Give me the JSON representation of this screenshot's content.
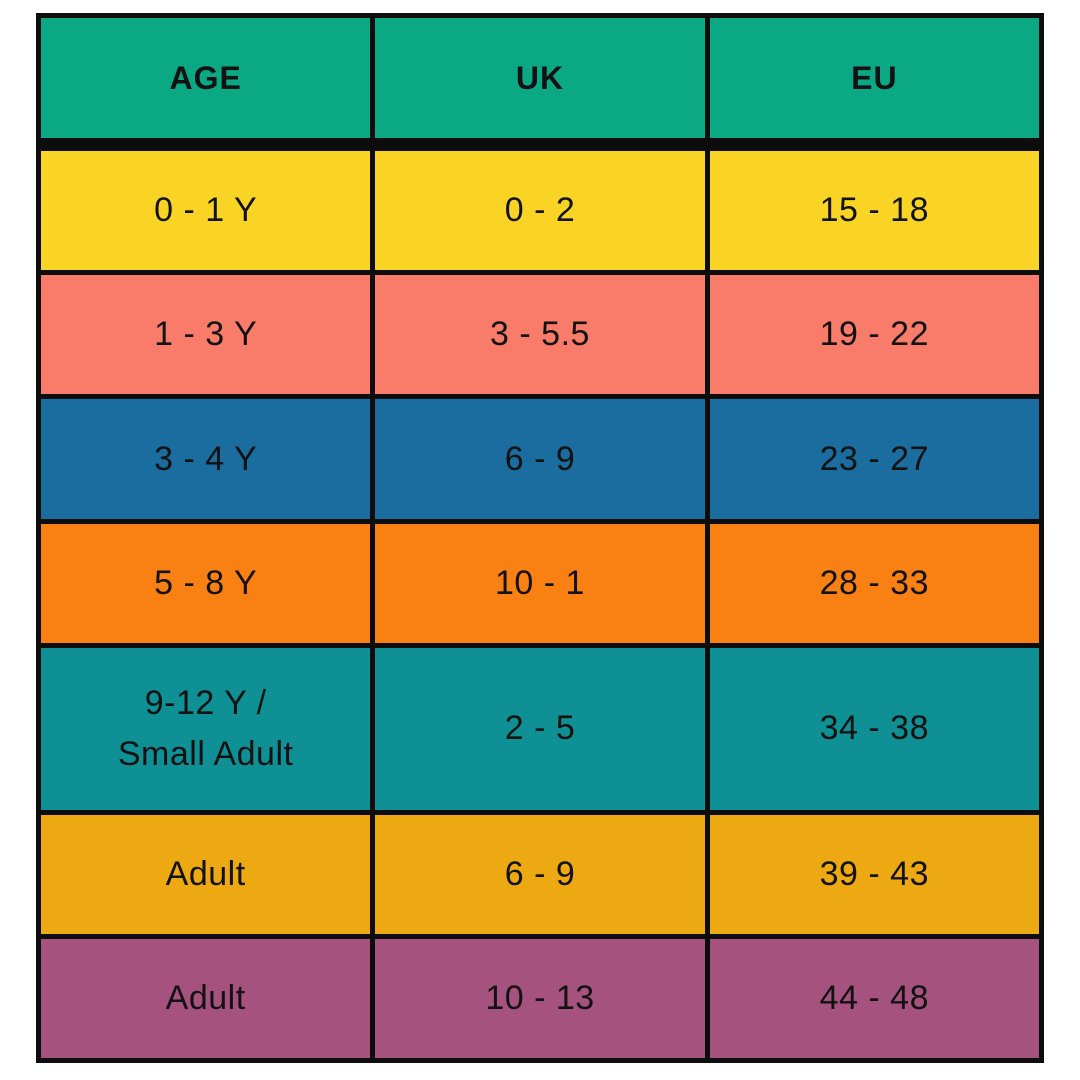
{
  "table": {
    "title": "shoe-size-conversion-chart",
    "border_color": "#0d0d0d",
    "text_color": "#121212",
    "header": {
      "bg": "#0ba884",
      "columns": [
        "AGE",
        "UK",
        "EU"
      ]
    },
    "rows": [
      {
        "bg": "#f9d425",
        "age": "0 - 1 Y",
        "uk": "0 - 2",
        "eu": "15 - 18",
        "tall": false
      },
      {
        "bg": "#f97c6b",
        "age": "1 - 3 Y",
        "uk": "3 - 5.5",
        "eu": "19 - 22",
        "tall": false
      },
      {
        "bg": "#1a6d9e",
        "age": "3 - 4 Y",
        "uk": "6 - 9",
        "eu": "23 - 27",
        "tall": false
      },
      {
        "bg": "#f98012",
        "age": "5 - 8 Y",
        "uk": "10 - 1",
        "eu": "28 - 33",
        "tall": false
      },
      {
        "bg": "#0e9095",
        "age": "9-12 Y /\nSmall Adult",
        "uk": "2 - 5",
        "eu": "34 - 38",
        "tall": true
      },
      {
        "bg": "#eda911",
        "age": "Adult",
        "uk": "6 - 9",
        "eu": "39 - 43",
        "tall": false
      },
      {
        "bg": "#a5527e",
        "age": "Adult",
        "uk": "10 - 13",
        "eu": "44 - 48",
        "tall": false
      }
    ]
  }
}
